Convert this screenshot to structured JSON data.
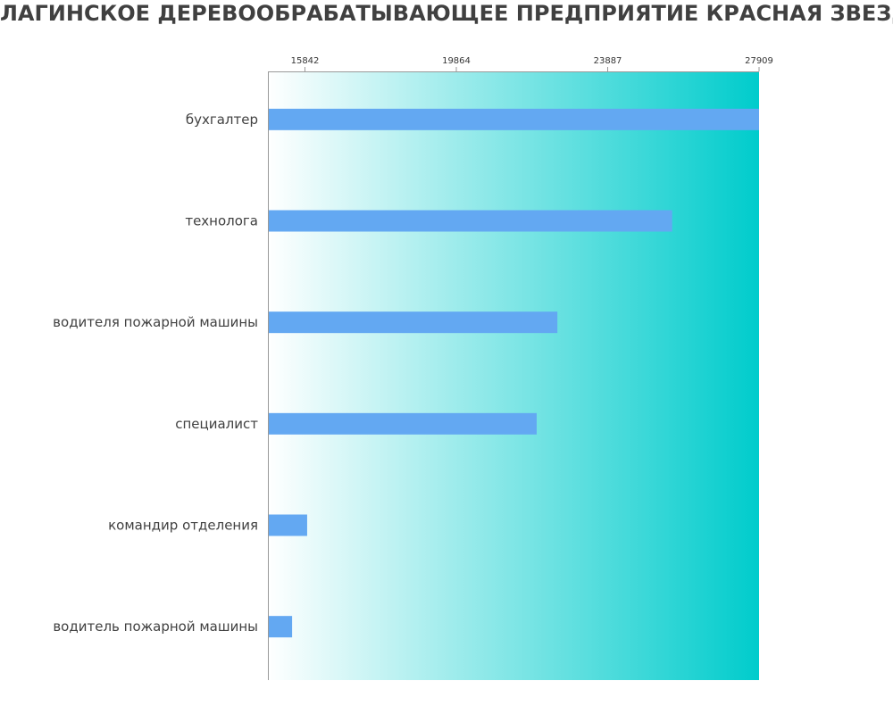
{
  "chart_data": {
    "type": "bar",
    "orientation": "horizontal",
    "title": "ЛАГИНСКОЕ ДЕРЕВООБРАБАТЫВАЮЩЕЕ ПРЕДПРИЯТИЕ КРАСНАЯ ЗВЕЗДА",
    "categories": [
      "бухгалтер",
      "технолога",
      "водителя пожарной машины",
      "специалист",
      "командир отделения",
      "водитель пожарной машины"
    ],
    "values": [
      27909,
      25600,
      22550,
      22000,
      15900,
      15500
    ],
    "x_ticks": [
      15842,
      19864,
      23887,
      27909
    ],
    "x_range": [
      14857,
      27909
    ],
    "xlabel": "",
    "ylabel": "",
    "x_axis_position": "top",
    "grid": false,
    "legend": "none",
    "colors": {
      "bar": "#63a8f2",
      "background_start": "#ffffff",
      "background_end": "#00cccc",
      "axis": "#999999",
      "label_text": "#404040"
    }
  }
}
